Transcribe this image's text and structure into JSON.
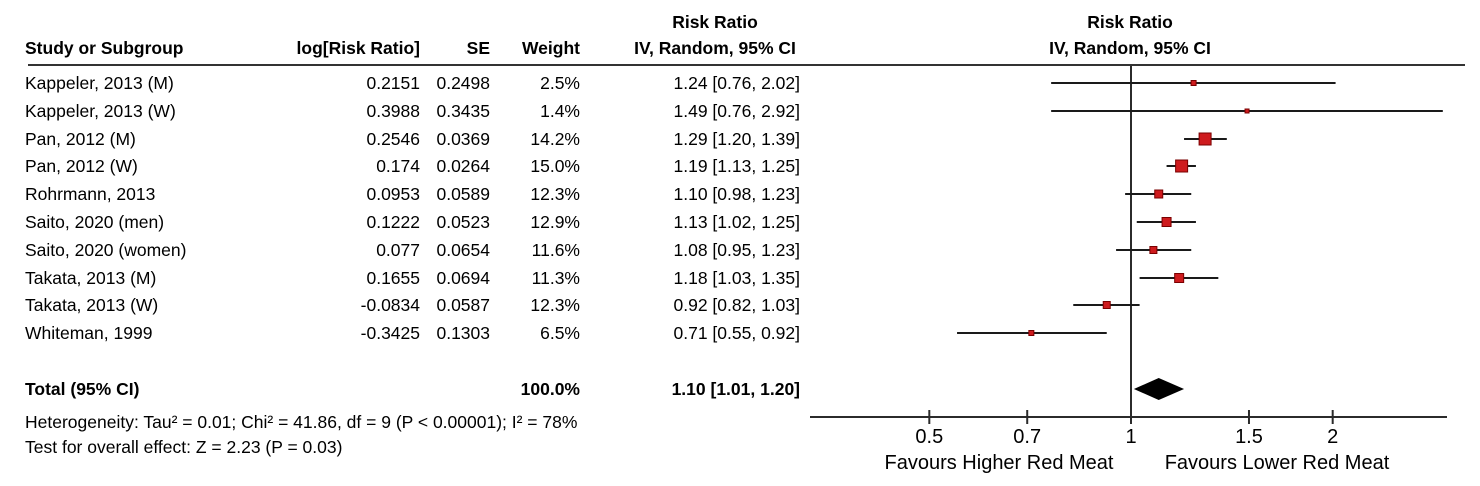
{
  "table": {
    "headers": {
      "study": "Study or Subgroup",
      "log_rr": "log[Risk Ratio]",
      "se": "SE",
      "weight": "Weight",
      "effect_line1": "Risk Ratio",
      "effect_line2": "IV, Random, 95% CI"
    },
    "total": {
      "label": "Total (95% CI)",
      "weight": "100.0%",
      "estimate": "1.10 [1.01, 1.20]"
    },
    "footnotes": {
      "heterogeneity": "Heterogeneity: Tau² = 0.01; Chi² = 41.86, df = 9 (P < 0.00001); I² = 78%",
      "overall_effect": "Test for overall effect: Z = 2.23 (P = 0.03)"
    }
  },
  "chart_data": {
    "type": "forest",
    "effect_measure": "Risk Ratio",
    "model": "IV, Random",
    "x_scale": "log",
    "plot_header": {
      "line1": "Risk Ratio",
      "line2": "IV, Random, 95% CI"
    },
    "axis_ticks": [
      0.5,
      0.7,
      1,
      1.5,
      2
    ],
    "axis_range": [
      0.33,
      2.95
    ],
    "favours_left": "Favours Higher Red Meat",
    "favours_right": "Favours Lower Red Meat",
    "marker_color": "#ce1b1e",
    "marker_border_color": "#7a0000",
    "line_color": "#1a1a1a",
    "diamond_color": "#000000",
    "studies": [
      {
        "name": "Kappeler, 2013 (M)",
        "log_rr": "0.2151",
        "se": "0.2498",
        "weight": "2.5%",
        "estimate": "1.24 [0.76, 2.02]",
        "rr": 1.24,
        "ci_low": 0.76,
        "ci_high": 2.02,
        "marker_size": 5
      },
      {
        "name": "Kappeler, 2013 (W)",
        "log_rr": "0.3988",
        "se": "0.3435",
        "weight": "1.4%",
        "estimate": "1.49 [0.76, 2.92]",
        "rr": 1.49,
        "ci_low": 0.76,
        "ci_high": 2.92,
        "marker_size": 4
      },
      {
        "name": "Pan, 2012 (M)",
        "log_rr": "0.2546",
        "se": "0.0369",
        "weight": "14.2%",
        "estimate": "1.29 [1.20, 1.39]",
        "rr": 1.29,
        "ci_low": 1.2,
        "ci_high": 1.39,
        "marker_size": 12
      },
      {
        "name": "Pan, 2012 (W)",
        "log_rr": "0.174",
        "se": "0.0264",
        "weight": "15.0%",
        "estimate": "1.19 [1.13, 1.25]",
        "rr": 1.19,
        "ci_low": 1.13,
        "ci_high": 1.25,
        "marker_size": 12
      },
      {
        "name": "Rohrmann, 2013",
        "log_rr": "0.0953",
        "se": "0.0589",
        "weight": "12.3%",
        "estimate": "1.10 [0.98, 1.23]",
        "rr": 1.1,
        "ci_low": 0.98,
        "ci_high": 1.23,
        "marker_size": 8
      },
      {
        "name": "Saito, 2020 (men)",
        "log_rr": "0.1222",
        "se": "0.0523",
        "weight": "12.9%",
        "estimate": "1.13 [1.02, 1.25]",
        "rr": 1.13,
        "ci_low": 1.02,
        "ci_high": 1.25,
        "marker_size": 9
      },
      {
        "name": "Saito, 2020 (women)",
        "log_rr": "0.077",
        "se": "0.0654",
        "weight": "11.6%",
        "estimate": "1.08 [0.95, 1.23]",
        "rr": 1.08,
        "ci_low": 0.95,
        "ci_high": 1.23,
        "marker_size": 7
      },
      {
        "name": "Takata, 2013 (M)",
        "log_rr": "0.1655",
        "se": "0.0694",
        "weight": "11.3%",
        "estimate": "1.18 [1.03, 1.35]",
        "rr": 1.18,
        "ci_low": 1.03,
        "ci_high": 1.35,
        "marker_size": 9
      },
      {
        "name": "Takata, 2013 (W)",
        "log_rr": "-0.0834",
        "se": "0.0587",
        "weight": "12.3%",
        "estimate": "0.92 [0.82, 1.03]",
        "rr": 0.92,
        "ci_low": 0.82,
        "ci_high": 1.03,
        "marker_size": 7
      },
      {
        "name": "Whiteman, 1999",
        "log_rr": "-0.3425",
        "se": "0.1303",
        "weight": "6.5%",
        "estimate": "0.71 [0.55, 0.92]",
        "rr": 0.71,
        "ci_low": 0.55,
        "ci_high": 0.92,
        "marker_size": 5
      }
    ],
    "total": {
      "rr": 1.1,
      "ci_low": 1.01,
      "ci_high": 1.2
    }
  }
}
